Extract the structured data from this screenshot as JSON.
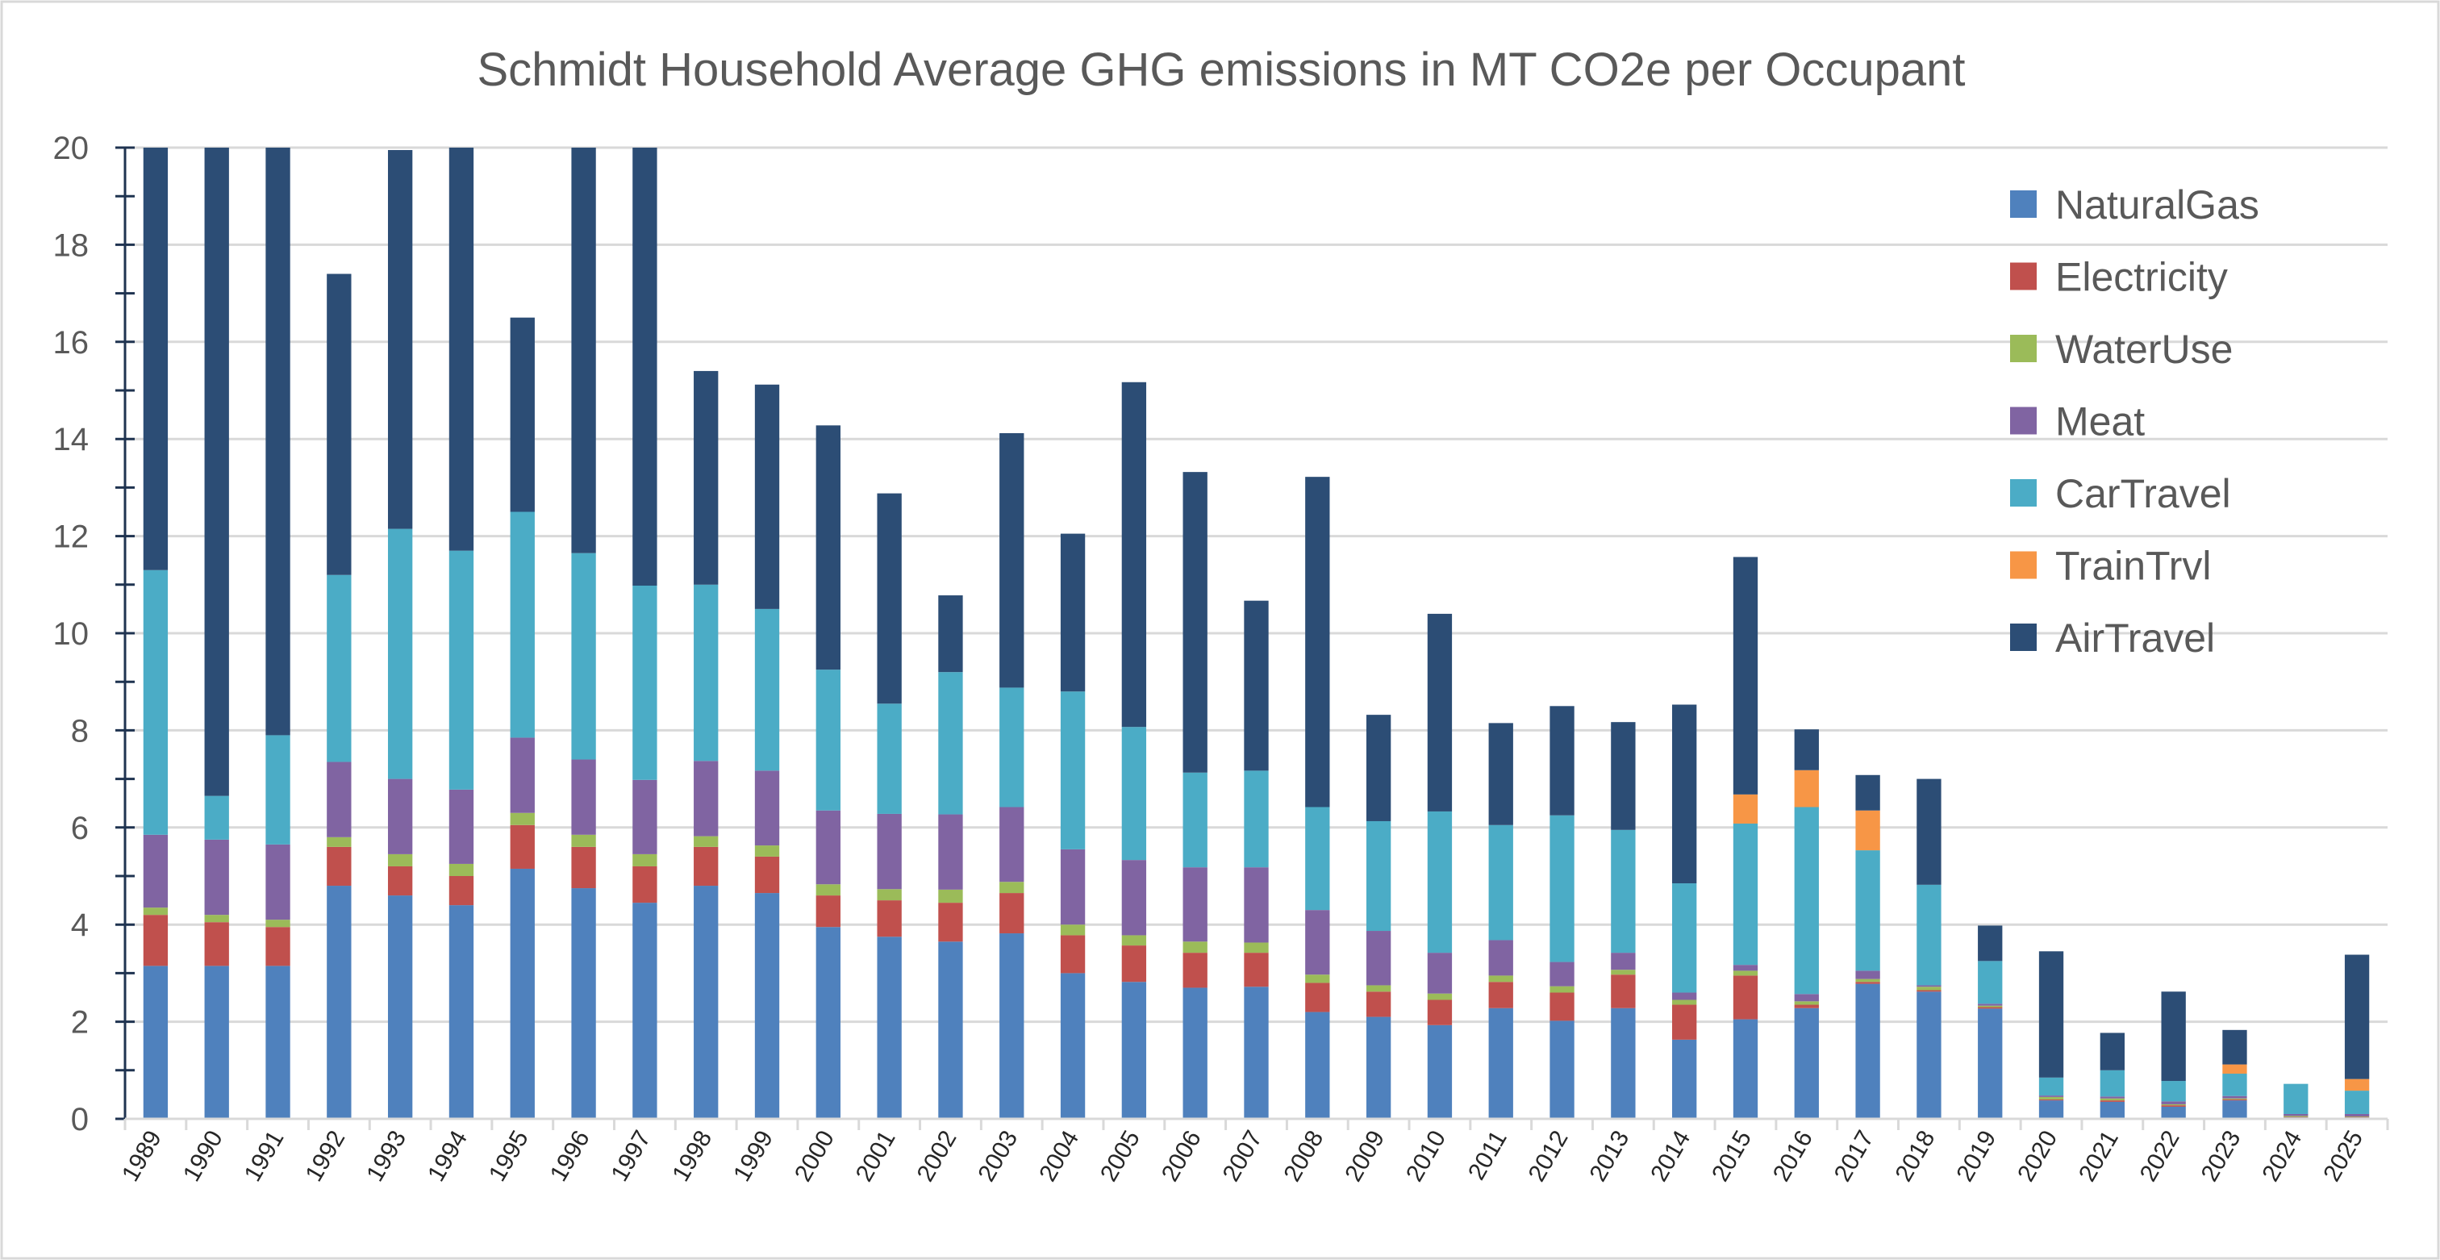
{
  "chart_data": {
    "type": "bar",
    "stacked": true,
    "title": "Schmidt Household Average GHG emissions in MT CO2e per Occupant",
    "xlabel": "",
    "ylabel": "",
    "ylim": [
      0,
      20
    ],
    "yticks": [
      0,
      2,
      4,
      6,
      8,
      10,
      12,
      14,
      16,
      18,
      20
    ],
    "grid": true,
    "legend_position": "top-right",
    "categories": [
      "1989",
      "1990",
      "1991",
      "1992",
      "1993",
      "1994",
      "1995",
      "1996",
      "1997",
      "1998",
      "1999",
      "2000",
      "2001",
      "2002",
      "2003",
      "2004",
      "2005",
      "2006",
      "2007",
      "2008",
      "2009",
      "2010",
      "2011",
      "2012",
      "2013",
      "2014",
      "2015",
      "2016",
      "2017",
      "2018",
      "2019",
      "2020",
      "2021",
      "2022",
      "2023",
      "2024",
      "2025"
    ],
    "series": [
      {
        "name": "NaturalGas",
        "color": "#4F81BD",
        "values": [
          3.15,
          3.15,
          3.15,
          4.8,
          4.6,
          4.4,
          5.15,
          4.75,
          4.45,
          4.8,
          4.65,
          3.95,
          3.75,
          3.65,
          3.82,
          3.0,
          2.82,
          2.7,
          2.72,
          2.2,
          2.1,
          1.93,
          2.28,
          2.02,
          2.28,
          1.63,
          2.05,
          2.28,
          2.78,
          2.62,
          2.27,
          0.38,
          0.35,
          0.25,
          0.38,
          0.03,
          0.03
        ]
      },
      {
        "name": "Electricity",
        "color": "#C0504D",
        "values": [
          1.05,
          0.9,
          0.8,
          0.8,
          0.6,
          0.6,
          0.9,
          0.85,
          0.75,
          0.8,
          0.75,
          0.65,
          0.75,
          0.8,
          0.83,
          0.78,
          0.75,
          0.72,
          0.7,
          0.6,
          0.52,
          0.52,
          0.54,
          0.58,
          0.69,
          0.72,
          0.9,
          0.07,
          0.04,
          0.03,
          0.03,
          0.02,
          0.03,
          0.03,
          0.02,
          0.01,
          0.01
        ]
      },
      {
        "name": "WaterUse",
        "color": "#9BBB59",
        "values": [
          0.15,
          0.15,
          0.15,
          0.2,
          0.25,
          0.25,
          0.25,
          0.25,
          0.25,
          0.22,
          0.23,
          0.23,
          0.23,
          0.27,
          0.23,
          0.22,
          0.21,
          0.23,
          0.21,
          0.17,
          0.13,
          0.13,
          0.13,
          0.13,
          0.1,
          0.1,
          0.1,
          0.07,
          0.06,
          0.07,
          0.03,
          0.05,
          0.04,
          0.02,
          0.02,
          0.02,
          0.01
        ]
      },
      {
        "name": "Meat",
        "color": "#8064A2",
        "values": [
          1.5,
          1.55,
          1.55,
          1.55,
          1.55,
          1.53,
          1.55,
          1.55,
          1.53,
          1.55,
          1.54,
          1.52,
          1.55,
          1.55,
          1.54,
          1.55,
          1.55,
          1.53,
          1.55,
          1.33,
          1.12,
          0.84,
          0.73,
          0.5,
          0.35,
          0.15,
          0.12,
          0.15,
          0.17,
          0.03,
          0.04,
          0.03,
          0.04,
          0.06,
          0.05,
          0.04,
          0.05
        ]
      },
      {
        "name": "CarTravel",
        "color": "#4BACC6",
        "values": [
          5.45,
          0.9,
          2.25,
          3.85,
          5.15,
          4.92,
          4.65,
          4.25,
          4.0,
          3.63,
          3.33,
          2.9,
          2.27,
          2.93,
          2.46,
          3.25,
          2.74,
          1.95,
          1.99,
          2.12,
          2.26,
          2.91,
          2.37,
          3.02,
          2.53,
          2.25,
          2.91,
          3.85,
          2.48,
          2.07,
          0.88,
          0.37,
          0.54,
          0.42,
          0.46,
          0.62,
          0.48
        ]
      },
      {
        "name": "TrainTrvl",
        "color": "#F79646",
        "values": [
          0,
          0,
          0,
          0,
          0,
          0,
          0,
          0,
          0,
          0,
          0,
          0,
          0,
          0,
          0,
          0,
          0,
          0,
          0,
          0,
          0,
          0,
          0,
          0,
          0,
          0,
          0.6,
          0.76,
          0.82,
          0,
          0,
          0,
          0,
          0,
          0.19,
          0,
          0.24
        ]
      },
      {
        "name": "AirTravel",
        "color": "#2C4D75",
        "values": [
          8.7,
          13.35,
          12.1,
          6.2,
          7.8,
          8.3,
          4.0,
          8.35,
          9.02,
          4.4,
          4.62,
          5.03,
          4.33,
          1.58,
          5.24,
          3.25,
          7.1,
          6.19,
          3.5,
          6.8,
          2.19,
          4.07,
          2.1,
          2.25,
          2.22,
          3.68,
          4.89,
          0.84,
          0.73,
          2.18,
          0.73,
          2.6,
          0.77,
          1.84,
          0.71,
          0,
          2.56
        ]
      }
    ]
  }
}
